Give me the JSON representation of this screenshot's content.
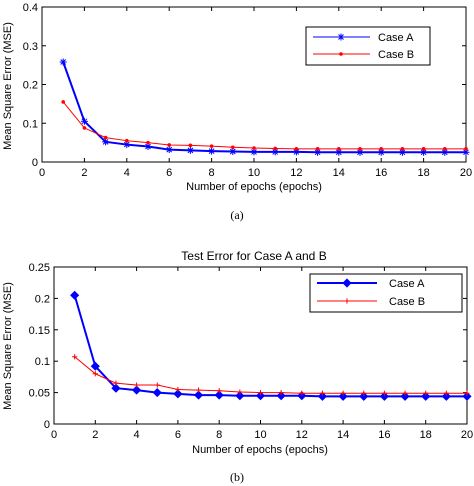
{
  "chart_data": [
    {
      "type": "line",
      "title": "",
      "caption": "(a)",
      "xlabel": "Number of epochs (epochs)",
      "ylabel": "Mean Square Error (MSE)",
      "xlim": [
        0,
        20
      ],
      "ylim": [
        0,
        0.4
      ],
      "xticks": [
        0,
        2,
        4,
        6,
        8,
        10,
        12,
        14,
        16,
        18,
        20
      ],
      "yticks": [
        0,
        0.1,
        0.2,
        0.3,
        0.4
      ],
      "ytick_labels": [
        "0",
        "0.1",
        "0.2",
        "0.3",
        "0.4"
      ],
      "legend_position": "top-right",
      "x": [
        1,
        2,
        3,
        4,
        5,
        6,
        7,
        8,
        9,
        10,
        11,
        12,
        13,
        14,
        15,
        16,
        17,
        18,
        19,
        20
      ],
      "series": [
        {
          "name": "Case A",
          "color": "#0000ff",
          "marker": "asterisk",
          "values": [
            0.258,
            0.105,
            0.052,
            0.045,
            0.04,
            0.032,
            0.03,
            0.028,
            0.027,
            0.026,
            0.026,
            0.026,
            0.025,
            0.025,
            0.025,
            0.025,
            0.025,
            0.025,
            0.025,
            0.025
          ]
        },
        {
          "name": "Case B",
          "color": "#ff0000",
          "marker": "dot",
          "values": [
            0.155,
            0.088,
            0.063,
            0.055,
            0.05,
            0.044,
            0.043,
            0.041,
            0.038,
            0.036,
            0.035,
            0.034,
            0.034,
            0.034,
            0.034,
            0.034,
            0.034,
            0.034,
            0.034,
            0.034
          ]
        }
      ]
    },
    {
      "type": "line",
      "title": "Test Error for Case A and B",
      "caption": "(b)",
      "xlabel": "Number of epochs (epochs)",
      "ylabel": "Mean Square Error (MSE)",
      "xlim": [
        0,
        20
      ],
      "ylim": [
        0,
        0.25
      ],
      "xticks": [
        0,
        2,
        4,
        6,
        8,
        10,
        12,
        14,
        16,
        18,
        20
      ],
      "yticks": [
        0,
        0.05,
        0.1,
        0.15,
        0.2,
        0.25
      ],
      "ytick_labels": [
        "0",
        "0.05",
        "0.1",
        "0.15",
        "0.2",
        "0.25"
      ],
      "legend_position": "top-right",
      "x": [
        1,
        2,
        3,
        4,
        5,
        6,
        7,
        8,
        9,
        10,
        11,
        12,
        13,
        14,
        15,
        16,
        17,
        18,
        19,
        20
      ],
      "series": [
        {
          "name": "Case A",
          "color": "#0000ff",
          "marker": "diamond",
          "values": [
            0.205,
            0.092,
            0.057,
            0.054,
            0.05,
            0.048,
            0.046,
            0.046,
            0.045,
            0.045,
            0.045,
            0.045,
            0.044,
            0.044,
            0.044,
            0.044,
            0.044,
            0.044,
            0.044,
            0.044
          ]
        },
        {
          "name": "Case B",
          "color": "#ff0000",
          "marker": "plus",
          "values": [
            0.107,
            0.08,
            0.065,
            0.062,
            0.062,
            0.055,
            0.054,
            0.053,
            0.051,
            0.05,
            0.05,
            0.049,
            0.049,
            0.049,
            0.049,
            0.049,
            0.049,
            0.049,
            0.049,
            0.049
          ]
        }
      ]
    }
  ]
}
